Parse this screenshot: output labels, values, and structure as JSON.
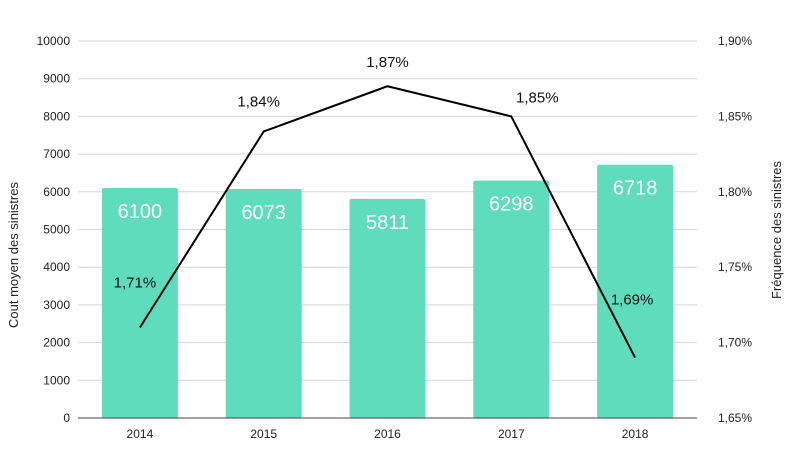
{
  "chart_data": {
    "type": "bar",
    "categories": [
      "2014",
      "2015",
      "2016",
      "2017",
      "2018"
    ],
    "series": [
      {
        "name": "Cout moyen des sinistres",
        "type": "bar",
        "axis": "left",
        "values": [
          6100,
          6073,
          5811,
          6298,
          6718
        ],
        "labels": [
          "6100",
          "6073",
          "5811",
          "6298",
          "6718"
        ]
      },
      {
        "name": "Fréquence des sinistres",
        "type": "line",
        "axis": "right",
        "values": [
          1.71,
          1.84,
          1.87,
          1.85,
          1.69
        ],
        "labels": [
          "1,71%",
          "1,84%",
          "1,87%",
          "1,85%",
          "1,69%"
        ]
      }
    ],
    "ylabel": "Cout moyen des sinistres",
    "y2label": "Fréquence des sinistres",
    "ylim": [
      0,
      10000
    ],
    "y2lim": [
      1.65,
      1.9
    ],
    "yticks": [
      "0",
      "1000",
      "2000",
      "3000",
      "4000",
      "5000",
      "6000",
      "7000",
      "8000",
      "9000",
      "10000"
    ],
    "y2ticks": [
      "1,65%",
      "1,70%",
      "1,75%",
      "1,80%",
      "1,85%",
      "1,90%"
    ],
    "grid": true,
    "legend": "none",
    "colors": {
      "bar": "#5fdcbc",
      "line": "#000000",
      "grid": "#d6d6d6",
      "axis": "#444444"
    }
  }
}
